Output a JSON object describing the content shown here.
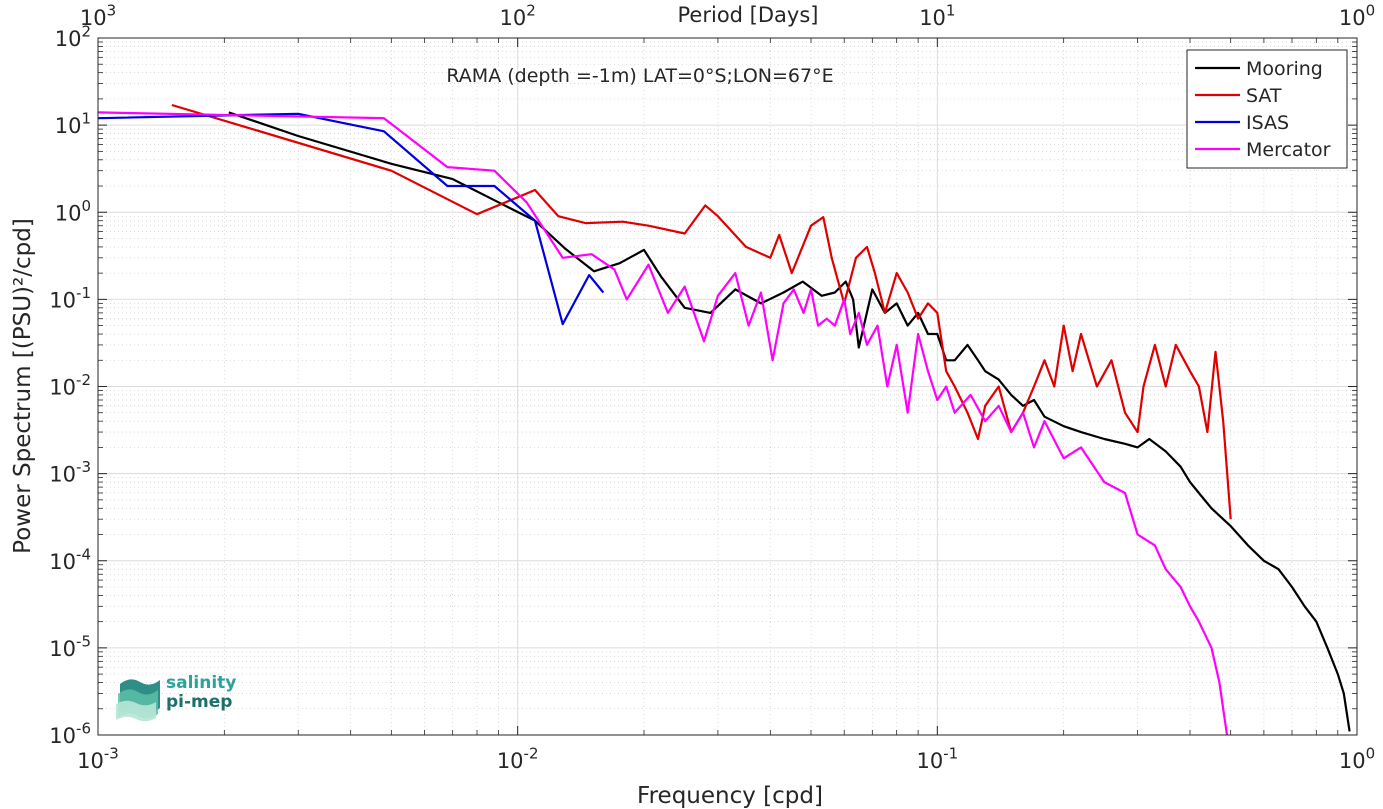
{
  "chart_data": {
    "type": "line",
    "title": "RAMA (depth =-1m) LAT=0°S;LON=67°E",
    "xlabel": "Frequency [cpd]",
    "ylabel": "Power Spectrum [(PSU)²/cpd]",
    "x_top_label": "Period [Days]",
    "x_scale": "log",
    "y_scale": "log",
    "xlim": [
      0.001,
      1
    ],
    "ylim": [
      1e-06,
      100
    ],
    "grid": true,
    "legend_position": "top-right",
    "x_ticks": [
      {
        "value": 0.001,
        "base": "10",
        "exp": "-3"
      },
      {
        "value": 0.01,
        "base": "10",
        "exp": "-2"
      },
      {
        "value": 0.1,
        "base": "10",
        "exp": "-1"
      },
      {
        "value": 1,
        "base": "10",
        "exp": "0"
      }
    ],
    "x_top_ticks": [
      {
        "value": 0.001,
        "base": "10",
        "exp": "3"
      },
      {
        "value": 0.01,
        "base": "10",
        "exp": "2"
      },
      {
        "value": 0.1,
        "base": "10",
        "exp": "1"
      },
      {
        "value": 1,
        "base": "10",
        "exp": "0"
      }
    ],
    "y_ticks": [
      {
        "value": 100,
        "base": "10",
        "exp": "2"
      },
      {
        "value": 10,
        "base": "10",
        "exp": "1"
      },
      {
        "value": 1,
        "base": "10",
        "exp": "0"
      },
      {
        "value": 0.1,
        "base": "10",
        "exp": "-1"
      },
      {
        "value": 0.01,
        "base": "10",
        "exp": "-2"
      },
      {
        "value": 0.001,
        "base": "10",
        "exp": "-3"
      },
      {
        "value": 0.0001,
        "base": "10",
        "exp": "-4"
      },
      {
        "value": 1e-05,
        "base": "10",
        "exp": "-5"
      },
      {
        "value": 1e-06,
        "base": "10",
        "exp": "-6"
      }
    ],
    "series": [
      {
        "name": "Mooring",
        "color": "#000000",
        "x": [
          0.00205,
          0.003,
          0.005,
          0.007,
          0.009,
          0.011,
          0.013,
          0.0152,
          0.0175,
          0.02,
          0.022,
          0.025,
          0.0288,
          0.033,
          0.038,
          0.043,
          0.0478,
          0.053,
          0.057,
          0.0605,
          0.063,
          0.065,
          0.07,
          0.075,
          0.08,
          0.085,
          0.09,
          0.095,
          0.1,
          0.105,
          0.11,
          0.118,
          0.125,
          0.13,
          0.14,
          0.15,
          0.16,
          0.17,
          0.18,
          0.2,
          0.22,
          0.25,
          0.28,
          0.3,
          0.32,
          0.35,
          0.38,
          0.4,
          0.42,
          0.45,
          0.48,
          0.5,
          0.55,
          0.6,
          0.65,
          0.7,
          0.75,
          0.8,
          0.85,
          0.9,
          0.93,
          0.96
        ],
        "y": [
          14,
          7.5,
          3.6,
          2.4,
          1.3,
          0.8,
          0.38,
          0.21,
          0.26,
          0.37,
          0.18,
          0.08,
          0.07,
          0.13,
          0.09,
          0.12,
          0.16,
          0.11,
          0.12,
          0.16,
          0.1,
          0.028,
          0.13,
          0.07,
          0.09,
          0.05,
          0.07,
          0.04,
          0.04,
          0.02,
          0.02,
          0.03,
          0.02,
          0.015,
          0.012,
          0.008,
          0.006,
          0.007,
          0.0045,
          0.0035,
          0.003,
          0.0025,
          0.0022,
          0.002,
          0.0025,
          0.0018,
          0.0012,
          0.0008,
          0.0006,
          0.0004,
          0.0003,
          0.00025,
          0.00015,
          0.0001,
          8e-05,
          5e-05,
          3e-05,
          2e-05,
          1e-05,
          5e-06,
          3e-06,
          1.1e-06
        ]
      },
      {
        "name": "SAT",
        "color": "#e00000",
        "x": [
          0.0015,
          0.005,
          0.008,
          0.011,
          0.0125,
          0.0145,
          0.0178,
          0.0205,
          0.025,
          0.028,
          0.03,
          0.035,
          0.04,
          0.042,
          0.045,
          0.05,
          0.0535,
          0.056,
          0.06,
          0.064,
          0.068,
          0.071,
          0.075,
          0.08,
          0.085,
          0.09,
          0.095,
          0.1,
          0.105,
          0.11,
          0.118,
          0.125,
          0.13,
          0.14,
          0.15,
          0.16,
          0.17,
          0.18,
          0.19,
          0.2,
          0.21,
          0.22,
          0.24,
          0.26,
          0.28,
          0.3,
          0.31,
          0.33,
          0.35,
          0.37,
          0.4,
          0.42,
          0.44,
          0.46,
          0.48,
          0.5
        ],
        "y": [
          17,
          3,
          0.95,
          1.8,
          0.9,
          0.75,
          0.78,
          0.7,
          0.57,
          1.2,
          0.9,
          0.4,
          0.3,
          0.55,
          0.2,
          0.7,
          0.88,
          0.3,
          0.09,
          0.3,
          0.4,
          0.2,
          0.07,
          0.2,
          0.12,
          0.06,
          0.09,
          0.07,
          0.015,
          0.01,
          0.005,
          0.0025,
          0.006,
          0.01,
          0.003,
          0.005,
          0.01,
          0.02,
          0.01,
          0.05,
          0.015,
          0.04,
          0.01,
          0.02,
          0.005,
          0.003,
          0.01,
          0.03,
          0.01,
          0.03,
          0.015,
          0.01,
          0.003,
          0.025,
          0.004,
          0.0003
        ]
      },
      {
        "name": "ISAS",
        "color": "#0000e0",
        "x": [
          0.001,
          0.003,
          0.0048,
          0.0068,
          0.0088,
          0.011,
          0.0128,
          0.0148,
          0.016
        ],
        "y": [
          12,
          13.5,
          8.5,
          2.0,
          2.0,
          0.8,
          0.052,
          0.19,
          0.12
        ]
      },
      {
        "name": "Mercator",
        "color": "#ff00ff",
        "x": [
          0.001,
          0.0048,
          0.0068,
          0.0088,
          0.0105,
          0.0128,
          0.015,
          0.017,
          0.0182,
          0.0205,
          0.0228,
          0.025,
          0.0278,
          0.03,
          0.033,
          0.0355,
          0.038,
          0.0405,
          0.043,
          0.0455,
          0.048,
          0.05,
          0.052,
          0.0545,
          0.057,
          0.06,
          0.062,
          0.065,
          0.068,
          0.072,
          0.076,
          0.08,
          0.085,
          0.09,
          0.095,
          0.1,
          0.105,
          0.11,
          0.12,
          0.13,
          0.14,
          0.15,
          0.16,
          0.17,
          0.18,
          0.2,
          0.22,
          0.25,
          0.28,
          0.3,
          0.33,
          0.35,
          0.38,
          0.4,
          0.42,
          0.45,
          0.47,
          0.48,
          0.49
        ],
        "y": [
          14,
          12,
          3.3,
          3,
          1.3,
          0.3,
          0.33,
          0.22,
          0.1,
          0.25,
          0.07,
          0.14,
          0.033,
          0.11,
          0.2,
          0.05,
          0.12,
          0.02,
          0.09,
          0.13,
          0.07,
          0.13,
          0.05,
          0.06,
          0.05,
          0.1,
          0.04,
          0.07,
          0.03,
          0.05,
          0.01,
          0.03,
          0.005,
          0.04,
          0.015,
          0.007,
          0.01,
          0.005,
          0.008,
          0.004,
          0.006,
          0.003,
          0.005,
          0.002,
          0.004,
          0.0015,
          0.002,
          0.0008,
          0.0006,
          0.0002,
          0.00015,
          8e-05,
          5e-05,
          3e-05,
          2e-05,
          1e-05,
          4e-06,
          2e-06,
          1e-06
        ]
      }
    ]
  },
  "logo": {
    "line1": "salinity",
    "line2": "pi-mep",
    "color1": "#2aa39a",
    "color2": "#1e6f6a"
  }
}
